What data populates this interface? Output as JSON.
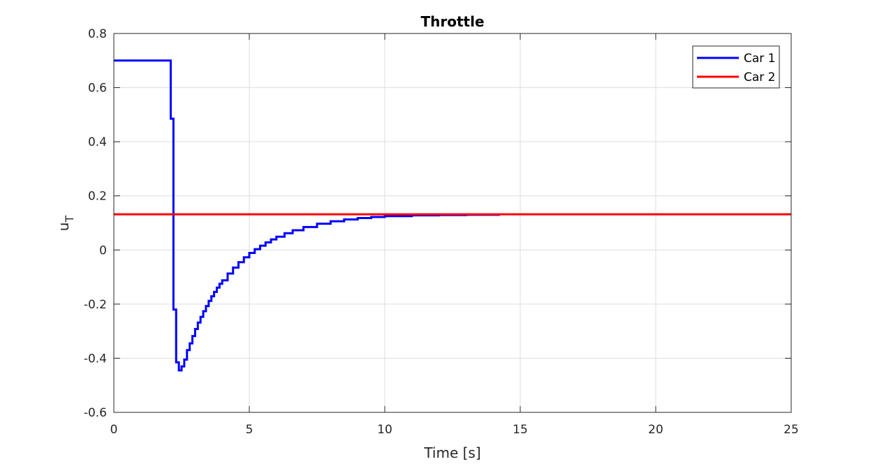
{
  "chart_data": {
    "type": "line",
    "title": "Throttle",
    "xlabel": "Time [s]",
    "ylabel_main": "u",
    "ylabel_sub": "T",
    "xlim": [
      0,
      25
    ],
    "ylim": [
      -0.6,
      0.8
    ],
    "xticks": [
      0,
      5,
      10,
      15,
      20,
      25
    ],
    "yticks": [
      -0.6,
      -0.4,
      -0.2,
      0,
      0.2,
      0.4,
      0.6,
      0.8
    ],
    "xtick_labels": [
      "0",
      "5",
      "10",
      "15",
      "20",
      "25"
    ],
    "ytick_labels": [
      "-0.6",
      "-0.4",
      "-0.2",
      "0",
      "0.2",
      "0.4",
      "0.6",
      "0.8"
    ],
    "grid": true,
    "legend_position": "top-right",
    "series": [
      {
        "name": "Car 1",
        "color": "#0000ff",
        "step": true,
        "x": [
          0,
          2.1,
          2.2,
          2.3,
          2.4,
          2.5,
          2.6,
          2.7,
          2.8,
          2.9,
          3.0,
          3.1,
          3.2,
          3.3,
          3.4,
          3.5,
          3.6,
          3.7,
          3.8,
          3.9,
          4.0,
          4.2,
          4.4,
          4.6,
          4.8,
          5.0,
          5.2,
          5.4,
          5.6,
          5.8,
          6.0,
          6.3,
          6.6,
          7.0,
          7.5,
          8.0,
          8.5,
          9.0,
          9.5,
          10.0,
          11.0,
          12.0,
          13.0,
          14.25
        ],
        "y": [
          0.7,
          0.485,
          -0.22,
          -0.415,
          -0.445,
          -0.43,
          -0.405,
          -0.37,
          -0.345,
          -0.318,
          -0.292,
          -0.268,
          -0.247,
          -0.226,
          -0.207,
          -0.188,
          -0.171,
          -0.155,
          -0.139,
          -0.125,
          -0.112,
          -0.087,
          -0.065,
          -0.045,
          -0.027,
          -0.011,
          0.003,
          0.016,
          0.028,
          0.039,
          0.049,
          0.062,
          0.073,
          0.085,
          0.097,
          0.106,
          0.113,
          0.118,
          0.122,
          0.125,
          0.128,
          0.129,
          0.13,
          0.13
        ]
      },
      {
        "name": "Car 2",
        "color": "#ff0000",
        "step": false,
        "x": [
          0,
          25
        ],
        "y": [
          0.132,
          0.132
        ]
      }
    ]
  }
}
